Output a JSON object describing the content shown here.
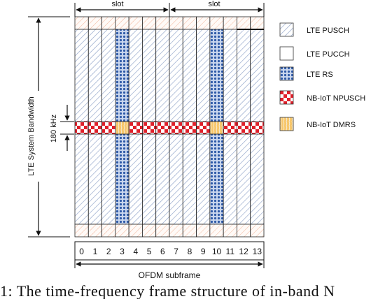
{
  "diagram": {
    "slot_labels": [
      "slot",
      "slot"
    ],
    "bandwidth_label": "LTE System Bandwidth",
    "nb_bandwidth_label": "180 kHz",
    "symbol_indices": [
      "0",
      "1",
      "2",
      "3",
      "4",
      "5",
      "6",
      "7",
      "8",
      "9",
      "10",
      "11",
      "12",
      "13"
    ],
    "x_axis_label": "OFDM subframe",
    "rs_symbols": [
      3,
      10
    ],
    "legend": [
      {
        "key": "pusch",
        "label": "LTE PUSCH"
      },
      {
        "key": "pucch",
        "label": "LTE PUCCH"
      },
      {
        "key": "rs",
        "label": "LTE RS"
      },
      {
        "key": "npusch",
        "label": "NB-IoT NPUSCH"
      },
      {
        "key": "dmrs",
        "label": "NB-IoT DMRS"
      }
    ],
    "colors": {
      "pusch_hatch": "#8fa3c9",
      "pucch_hatch": "#f2b49a",
      "rs_blue": "#2e5aa8",
      "npusch_red": "#e0202a",
      "dmrs_orange": "#f0a030"
    }
  },
  "caption": "1: The time-frequency frame structure of in-band N"
}
